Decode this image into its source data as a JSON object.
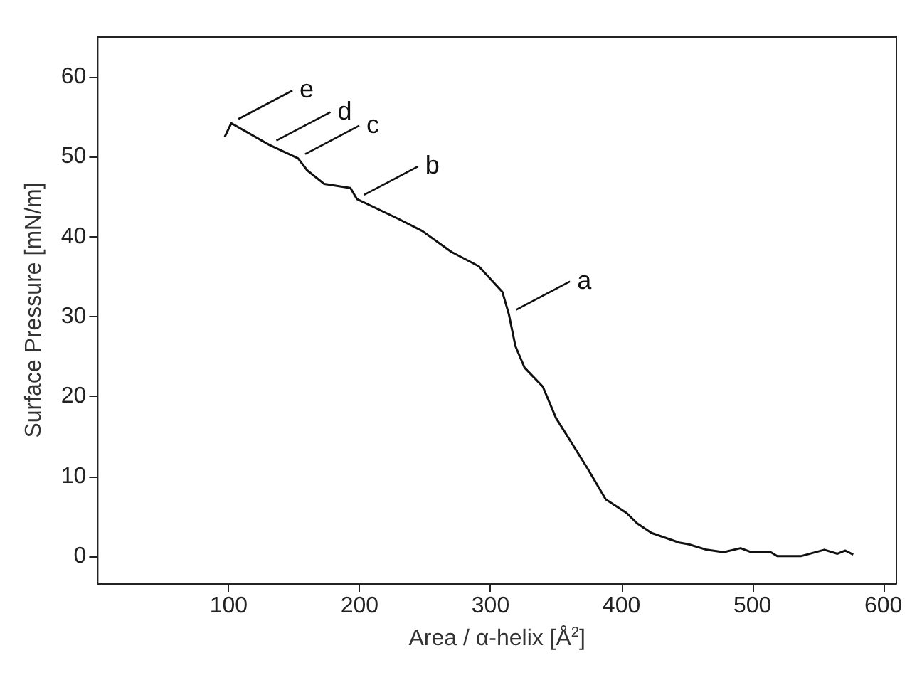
{
  "chart_data": {
    "type": "line",
    "xlabel": "Area / α-helix [Å$^{2}$]",
    "ylabel": "Surface Pressure [mN/m]",
    "xlim": [
      0,
      610
    ],
    "ylim": [
      -3.4,
      65
    ],
    "xticks": [
      100,
      200,
      300,
      400,
      500,
      600
    ],
    "yticks": [
      0,
      10,
      20,
      30,
      40,
      50,
      60
    ],
    "grid": false,
    "marker": "none",
    "line_style": "solid",
    "series": [
      {
        "color": "#111111",
        "x": [
          97,
          102,
          131,
          153,
          160,
          173,
          193,
          198,
          230,
          248,
          270,
          291,
          309,
          314,
          319,
          326,
          340,
          350,
          363,
          374,
          388,
          404,
          412,
          423,
          444,
          451,
          465,
          478,
          491,
          499,
          514,
          519,
          537,
          555,
          565,
          571,
          577
        ],
        "values": [
          52.5,
          54.2,
          51.5,
          49.8,
          48.3,
          46.6,
          46.1,
          44.7,
          42.2,
          40.7,
          38.1,
          36.3,
          33.1,
          30.3,
          26.3,
          23.6,
          21.2,
          17.3,
          13.9,
          11,
          7.1,
          5.4,
          4.1,
          2.9,
          1.7,
          1.5,
          0.8,
          0.5,
          1.0,
          0.5,
          0.5,
          0,
          0,
          0.8,
          0.3,
          0.7,
          0.2
        ]
      }
    ],
    "annotations": [
      {
        "text": "a",
        "x": 314,
        "y": 30.3
      },
      {
        "text": "b",
        "x": 198,
        "y": 44.7
      },
      {
        "text": "c",
        "x": 153,
        "y": 49.8
      },
      {
        "text": "d",
        "x": 131,
        "y": 51.5
      },
      {
        "text": "e",
        "x": 102,
        "y": 54.2
      }
    ]
  }
}
